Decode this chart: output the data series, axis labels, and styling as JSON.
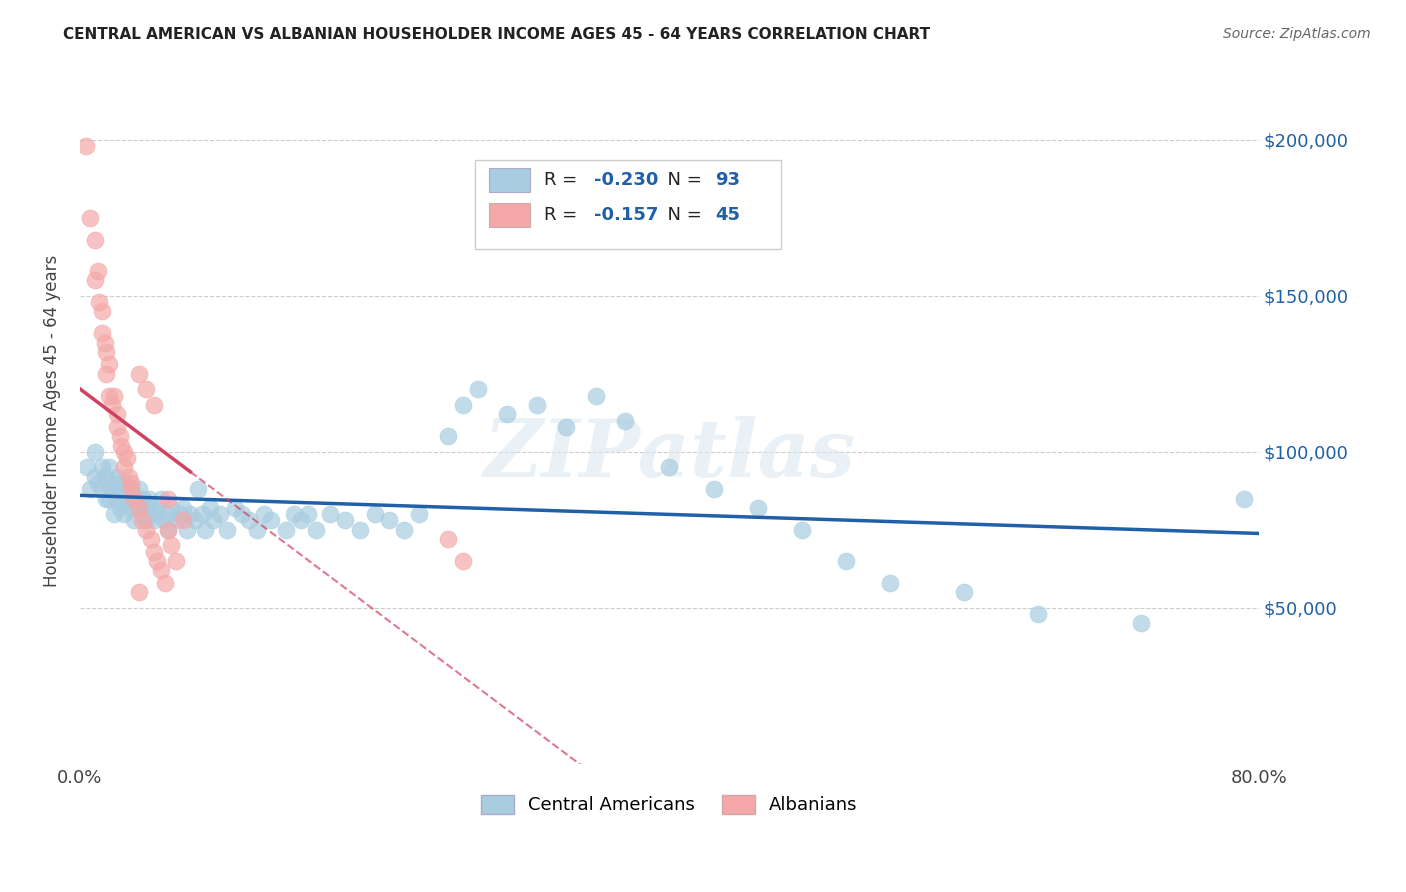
{
  "title": "CENTRAL AMERICAN VS ALBANIAN HOUSEHOLDER INCOME AGES 45 - 64 YEARS CORRELATION CHART",
  "source": "Source: ZipAtlas.com",
  "ylabel": "Householder Income Ages 45 - 64 years",
  "xlim": [
    0.0,
    0.8
  ],
  "ylim": [
    0,
    220000
  ],
  "yticks": [
    0,
    50000,
    100000,
    150000,
    200000
  ],
  "blue_R": "-0.230",
  "blue_N": "93",
  "pink_R": "-0.157",
  "pink_N": "45",
  "blue_color": "#a8cce0",
  "pink_color": "#f4a8a8",
  "blue_line_color": "#2060a8",
  "pink_line_color": "#d04060",
  "accent_color": "#2060a8",
  "watermark": "ZIPatlas",
  "blue_scatter_x": [
    0.005,
    0.007,
    0.01,
    0.01,
    0.012,
    0.015,
    0.015,
    0.017,
    0.018,
    0.02,
    0.02,
    0.02,
    0.022,
    0.023,
    0.025,
    0.025,
    0.025,
    0.027,
    0.028,
    0.03,
    0.03,
    0.03,
    0.032,
    0.033,
    0.035,
    0.035,
    0.037,
    0.038,
    0.04,
    0.04,
    0.042,
    0.043,
    0.045,
    0.045,
    0.047,
    0.048,
    0.05,
    0.05,
    0.052,
    0.055,
    0.057,
    0.06,
    0.06,
    0.062,
    0.065,
    0.068,
    0.07,
    0.073,
    0.075,
    0.078,
    0.08,
    0.083,
    0.085,
    0.088,
    0.09,
    0.095,
    0.1,
    0.105,
    0.11,
    0.115,
    0.12,
    0.125,
    0.13,
    0.14,
    0.145,
    0.15,
    0.155,
    0.16,
    0.17,
    0.18,
    0.19,
    0.2,
    0.21,
    0.22,
    0.23,
    0.25,
    0.26,
    0.27,
    0.29,
    0.31,
    0.33,
    0.35,
    0.37,
    0.4,
    0.43,
    0.46,
    0.49,
    0.52,
    0.55,
    0.6,
    0.65,
    0.72,
    0.79
  ],
  "blue_scatter_y": [
    95000,
    88000,
    100000,
    92000,
    90000,
    95000,
    88000,
    92000,
    85000,
    90000,
    95000,
    85000,
    88000,
    80000,
    90000,
    85000,
    92000,
    82000,
    88000,
    85000,
    90000,
    80000,
    88000,
    85000,
    82000,
    88000,
    78000,
    85000,
    82000,
    88000,
    80000,
    85000,
    78000,
    82000,
    85000,
    80000,
    78000,
    82000,
    80000,
    85000,
    78000,
    80000,
    75000,
    82000,
    78000,
    80000,
    82000,
    75000,
    80000,
    78000,
    88000,
    80000,
    75000,
    82000,
    78000,
    80000,
    75000,
    82000,
    80000,
    78000,
    75000,
    80000,
    78000,
    75000,
    80000,
    78000,
    80000,
    75000,
    80000,
    78000,
    75000,
    80000,
    78000,
    75000,
    80000,
    105000,
    115000,
    120000,
    112000,
    115000,
    108000,
    118000,
    110000,
    95000,
    88000,
    82000,
    75000,
    65000,
    58000,
    55000,
    48000,
    45000,
    85000
  ],
  "pink_scatter_x": [
    0.004,
    0.007,
    0.01,
    0.01,
    0.012,
    0.013,
    0.015,
    0.015,
    0.017,
    0.018,
    0.018,
    0.02,
    0.02,
    0.022,
    0.023,
    0.025,
    0.025,
    0.027,
    0.028,
    0.03,
    0.03,
    0.032,
    0.033,
    0.035,
    0.035,
    0.037,
    0.04,
    0.042,
    0.045,
    0.048,
    0.05,
    0.052,
    0.055,
    0.058,
    0.06,
    0.062,
    0.065,
    0.04,
    0.045,
    0.05,
    0.25,
    0.26,
    0.04,
    0.06,
    0.07
  ],
  "pink_scatter_y": [
    198000,
    175000,
    168000,
    155000,
    158000,
    148000,
    145000,
    138000,
    135000,
    132000,
    125000,
    128000,
    118000,
    115000,
    118000,
    112000,
    108000,
    105000,
    102000,
    100000,
    95000,
    98000,
    92000,
    90000,
    88000,
    85000,
    82000,
    78000,
    75000,
    72000,
    68000,
    65000,
    62000,
    58000,
    75000,
    70000,
    65000,
    125000,
    120000,
    115000,
    72000,
    65000,
    55000,
    85000,
    78000
  ]
}
